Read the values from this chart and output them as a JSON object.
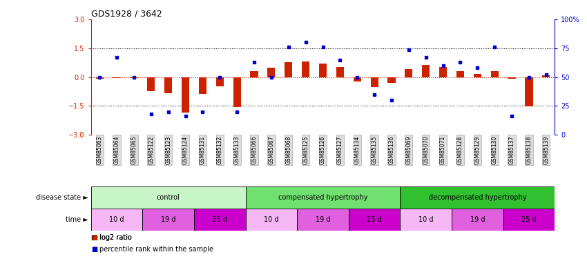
{
  "title": "GDS1928 / 3642",
  "samples": [
    "GSM85063",
    "GSM85064",
    "GSM85065",
    "GSM85122",
    "GSM85123",
    "GSM85124",
    "GSM85131",
    "GSM85132",
    "GSM85133",
    "GSM85066",
    "GSM85067",
    "GSM85068",
    "GSM85125",
    "GSM85126",
    "GSM85127",
    "GSM85134",
    "GSM85135",
    "GSM85136",
    "GSM85069",
    "GSM85070",
    "GSM85071",
    "GSM85128",
    "GSM85129",
    "GSM85130",
    "GSM85137",
    "GSM85138",
    "GSM85139"
  ],
  "log2_ratio": [
    -0.07,
    -0.04,
    -0.04,
    -0.72,
    -0.85,
    -1.85,
    -0.88,
    -0.48,
    -1.55,
    0.32,
    0.48,
    0.78,
    0.82,
    0.72,
    0.52,
    -0.22,
    -0.52,
    -0.32,
    0.42,
    0.62,
    0.52,
    0.32,
    0.18,
    0.32,
    -0.08,
    -1.52,
    0.1
  ],
  "percentile": [
    50,
    67,
    50,
    18,
    20,
    16,
    20,
    50,
    20,
    63,
    50,
    76,
    80,
    76,
    65,
    50,
    35,
    30,
    74,
    67,
    60,
    63,
    58,
    76,
    16,
    50,
    52
  ],
  "ylim": [
    -3,
    3
  ],
  "yticks_left": [
    -3,
    -1.5,
    0,
    1.5,
    3
  ],
  "yticks_right_vals": [
    -3,
    -1.5,
    0,
    1.5,
    3
  ],
  "yticks_right_labels": [
    "0",
    "25",
    "50",
    "75",
    "100%"
  ],
  "dotted_lines_black": [
    -1.5,
    1.5
  ],
  "zero_line_y": 0,
  "disease_groups": [
    {
      "label": "control",
      "start": 0,
      "end": 9,
      "color": "#c8f5c8"
    },
    {
      "label": "compensated hypertrophy",
      "start": 9,
      "end": 18,
      "color": "#70e070"
    },
    {
      "label": "decompensated hypertrophy",
      "start": 18,
      "end": 27,
      "color": "#30c030"
    }
  ],
  "time_groups": [
    {
      "label": "10 d",
      "start": 0,
      "end": 3,
      "color": "#f5b8f5"
    },
    {
      "label": "19 d",
      "start": 3,
      "end": 6,
      "color": "#e060e0"
    },
    {
      "label": "25 d",
      "start": 6,
      "end": 9,
      "color": "#cc00cc"
    },
    {
      "label": "10 d",
      "start": 9,
      "end": 12,
      "color": "#f5b8f5"
    },
    {
      "label": "19 d",
      "start": 12,
      "end": 15,
      "color": "#e060e0"
    },
    {
      "label": "25 d",
      "start": 15,
      "end": 18,
      "color": "#cc00cc"
    },
    {
      "label": "10 d",
      "start": 18,
      "end": 21,
      "color": "#f5b8f5"
    },
    {
      "label": "19 d",
      "start": 21,
      "end": 24,
      "color": "#e060e0"
    },
    {
      "label": "25 d",
      "start": 24,
      "end": 27,
      "color": "#cc00cc"
    }
  ],
  "bar_color": "#cc2200",
  "dot_color": "#0000cc",
  "zero_line_color": "#cc2200",
  "axis_color_left": "#cc2200",
  "axis_color_right": "#0000cc",
  "label_fontsize": 7,
  "tick_fontsize": 7,
  "sample_fontsize": 5.5,
  "title_fontsize": 9
}
